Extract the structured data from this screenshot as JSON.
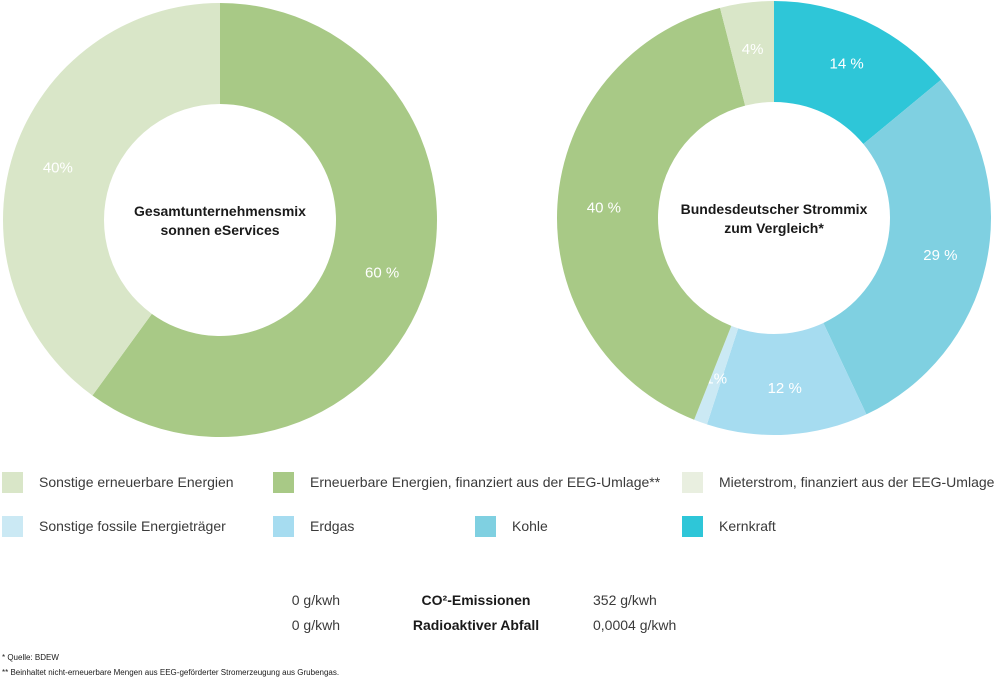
{
  "chart_data": [
    {
      "type": "pie",
      "center_label": [
        "Gesamtunternehmensmix",
        "sonnen eServices"
      ],
      "slices": [
        {
          "name": "Erneuerbare Energien, finanziert aus der EEG-Umlage**",
          "value": 60,
          "label": "60 %",
          "color": "#a8c986"
        },
        {
          "name": "Sonstige erneuerbare Energien",
          "value": 40,
          "label": "40%",
          "color": "#d9e6c8"
        }
      ]
    },
    {
      "type": "pie",
      "center_label": [
        "Bundesdeutscher Strommix",
        "zum Vergleich*"
      ],
      "slices": [
        {
          "name": "Kernkraft",
          "value": 14,
          "label": "14 %",
          "color": "#2ec6d8"
        },
        {
          "name": "Kohle",
          "value": 29,
          "label": "29 %",
          "color": "#7fd0e1"
        },
        {
          "name": "Erdgas",
          "value": 12,
          "label": "12 %",
          "color": "#a6dcf0"
        },
        {
          "name": "Sonstige fossile Energieträger",
          "value": 1,
          "label": "1%",
          "color": "#cbe9f4"
        },
        {
          "name": "Erneuerbare Energien, finanziert aus der EEG-Umlage**",
          "value": 40,
          "label": "40 %",
          "color": "#a8c986"
        },
        {
          "name": "Sonstige erneuerbare Energien",
          "value": 4,
          "label": "4%",
          "color": "#d9e6c8"
        }
      ]
    }
  ],
  "legend": [
    {
      "label": "Sonstige erneuerbare Energien",
      "color": "#d9e6c8"
    },
    {
      "label": "Erneuerbare Energien, finanziert aus der EEG-Umlage**",
      "color": "#a8c986"
    },
    {
      "label": "Mieterstrom, finanziert aus der EEG-Umlage",
      "color": "#e9efe0"
    },
    {
      "label": "Sonstige fossile Energieträger",
      "color": "#cbe9f4"
    },
    {
      "label": "Erdgas",
      "color": "#a6dcf0"
    },
    {
      "label": "Kohle",
      "color": "#7fd0e1"
    },
    {
      "label": "Kernkraft",
      "color": "#2ec6d8"
    }
  ],
  "stats": [
    {
      "left": "0 g/kwh",
      "label": "CO²-Emissionen",
      "right": "352 g/kwh"
    },
    {
      "left": "0 g/kwh",
      "label": "Radioaktiver Abfall",
      "right": "0,0004 g/kwh"
    }
  ],
  "footnotes": [
    "* Quelle: BDEW",
    "** Beinhaltet nicht-erneuerbare Mengen aus EEG-geförderter Stromerzeugung aus Grubengas."
  ]
}
